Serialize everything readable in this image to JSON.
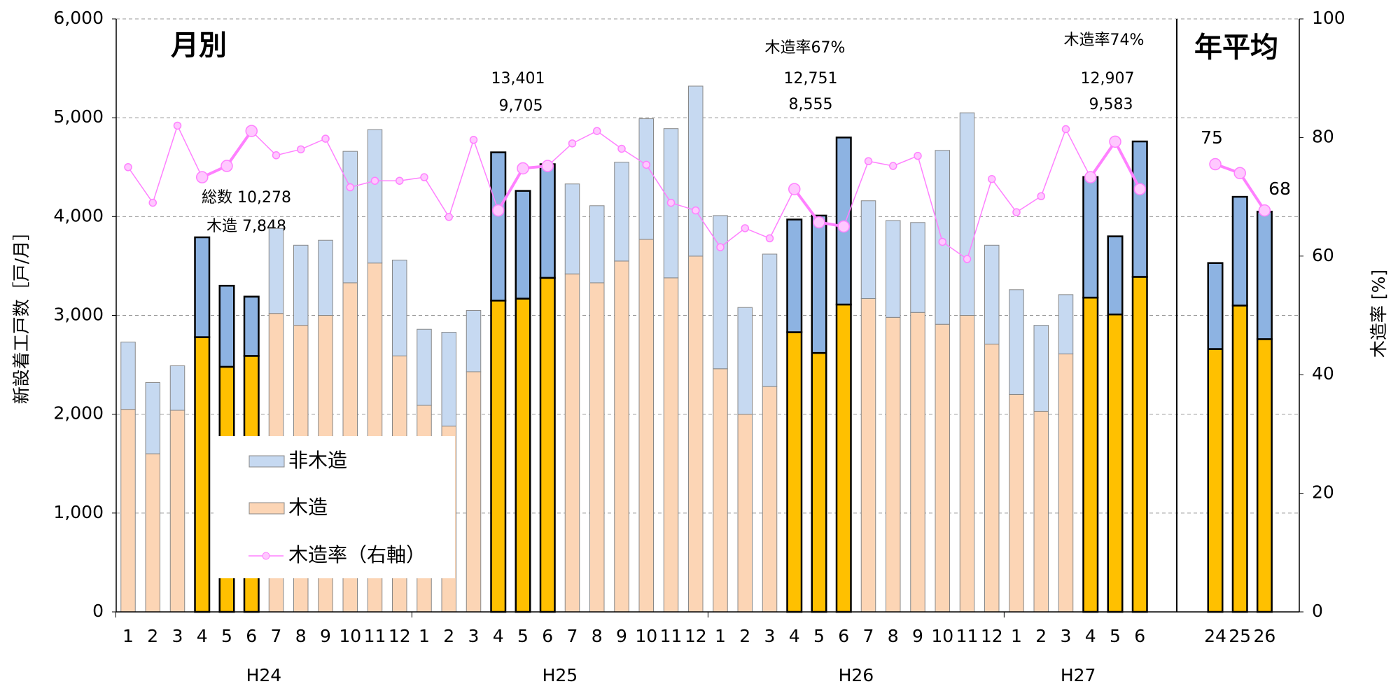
{
  "chart_data": {
    "type": "stacked_bar_line",
    "ylabel": "新設着工戸数［戸/月］",
    "y2label": "木造率 [%]",
    "categories": [
      "1",
      "2",
      "3",
      "4",
      "5",
      "6",
      "7",
      "8",
      "9",
      "10",
      "11",
      "12",
      "1",
      "2",
      "3",
      "4",
      "5",
      "6",
      "7",
      "8",
      "9",
      "10",
      "11",
      "12",
      "1",
      "2",
      "3",
      "4",
      "5",
      "6",
      "7",
      "8",
      "9",
      "10",
      "11",
      "12",
      "1",
      "2",
      "3",
      "4",
      "5",
      "6",
      "24",
      "25",
      "26"
    ],
    "groups": [
      {
        "label": "H24",
        "count": 12
      },
      {
        "label": "H25",
        "count": 12
      },
      {
        "label": "H26",
        "count": 12
      },
      {
        "label": "H27",
        "count": 6
      }
    ],
    "sections": [
      "月別",
      "年平均"
    ],
    "series": [
      {
        "name": "木造",
        "color": "#fcd5b5",
        "colors": [
          "#fcd5b5",
          "#fcd5b5",
          "#fcd5b5",
          "#ffc000",
          "#ffc000",
          "#ffc000",
          "#fcd5b5",
          "#fcd5b5",
          "#fcd5b5",
          "#fcd5b5",
          "#fcd5b5",
          "#fcd5b5",
          "#fcd5b5",
          "#fcd5b5",
          "#fcd5b5",
          "#ffc000",
          "#ffc000",
          "#ffc000",
          "#fcd5b5",
          "#fcd5b5",
          "#fcd5b5",
          "#fcd5b5",
          "#fcd5b5",
          "#fcd5b5",
          "#fcd5b5",
          "#fcd5b5",
          "#fcd5b5",
          "#ffc000",
          "#ffc000",
          "#ffc000",
          "#fcd5b5",
          "#fcd5b5",
          "#fcd5b5",
          "#fcd5b5",
          "#fcd5b5",
          "#fcd5b5",
          "#fcd5b5",
          "#fcd5b5",
          "#fcd5b5",
          "#ffc000",
          "#ffc000",
          "#ffc000",
          "#ffc000",
          "#ffc000",
          "#ffc000"
        ],
        "values": [
          2050,
          1600,
          2040,
          2780,
          2480,
          2590,
          3020,
          2900,
          3000,
          3330,
          3530,
          2590,
          2090,
          1880,
          2430,
          3150,
          3170,
          3380,
          3420,
          3330,
          3550,
          3770,
          3380,
          3600,
          2460,
          2000,
          2280,
          2830,
          2620,
          3110,
          3170,
          2980,
          3030,
          2910,
          3000,
          2710,
          2200,
          2030,
          2610,
          3180,
          3010,
          3390,
          2660,
          3100,
          2760
        ]
      },
      {
        "name": "非木造",
        "color": "#c6d9f1",
        "colors": [
          "#c6d9f1",
          "#c6d9f1",
          "#c6d9f1",
          "#8db3e2",
          "#8db3e2",
          "#8db3e2",
          "#c6d9f1",
          "#c6d9f1",
          "#c6d9f1",
          "#c6d9f1",
          "#c6d9f1",
          "#c6d9f1",
          "#c6d9f1",
          "#c6d9f1",
          "#c6d9f1",
          "#8db3e2",
          "#8db3e2",
          "#8db3e2",
          "#c6d9f1",
          "#c6d9f1",
          "#c6d9f1",
          "#c6d9f1",
          "#c6d9f1",
          "#c6d9f1",
          "#c6d9f1",
          "#c6d9f1",
          "#c6d9f1",
          "#8db3e2",
          "#8db3e2",
          "#8db3e2",
          "#c6d9f1",
          "#c6d9f1",
          "#c6d9f1",
          "#c6d9f1",
          "#c6d9f1",
          "#c6d9f1",
          "#c6d9f1",
          "#c6d9f1",
          "#c6d9f1",
          "#8db3e2",
          "#8db3e2",
          "#8db3e2",
          "#8db3e2",
          "#8db3e2",
          "#8db3e2"
        ],
        "values": [
          680,
          720,
          450,
          1010,
          820,
          600,
          860,
          810,
          760,
          1330,
          1350,
          970,
          770,
          950,
          620,
          1500,
          1090,
          1150,
          910,
          780,
          1000,
          1220,
          1510,
          1720,
          1550,
          1080,
          1340,
          1140,
          1390,
          1690,
          990,
          980,
          910,
          1760,
          2050,
          1000,
          1060,
          870,
          600,
          1220,
          790,
          1370,
          870,
          1100,
          1290
        ]
      },
      {
        "name": "木造率（右軸）",
        "color": "#ff80ff",
        "axis": "y2",
        "values": [
          75,
          69,
          82,
          73.3,
          75.2,
          81.1,
          77,
          78,
          79.8,
          71.6,
          72.7,
          72.7,
          73.3,
          66.6,
          79.6,
          67.7,
          74.8,
          75.2,
          79,
          81.1,
          78.1,
          75.4,
          69,
          67.7,
          61.5,
          64.7,
          63,
          71.3,
          65.7,
          65,
          76,
          75.2,
          76.9,
          62.4,
          59.5,
          73,
          67.4,
          70.1,
          81.4,
          73.3,
          79.3,
          71.3,
          75.5,
          74,
          67.7
        ]
      }
    ],
    "annotations": [
      "総数 10,278",
      "木造 7,848",
      "13,401",
      "9,705",
      "木造率67%",
      "12,751",
      "8,555",
      "木造率74%",
      "12,907",
      "9,583",
      "75",
      "68"
    ],
    "ylim": [
      0,
      6000
    ],
    "yticks": [
      0,
      {
        "value": 1000,
        "label": "1,000"
      },
      {
        "value": 2000,
        "label": "2,000"
      },
      {
        "value": 3000,
        "label": "3,000"
      },
      {
        "value": 4000,
        "label": "4,000"
      },
      {
        "value": 5000,
        "label": "5,000"
      },
      {
        "value": 6000,
        "label": "6,000"
      }
    ],
    "y2lim": [
      0,
      100
    ],
    "y2ticks": [
      0,
      20,
      40,
      60,
      80,
      100
    ],
    "grid": true
  }
}
